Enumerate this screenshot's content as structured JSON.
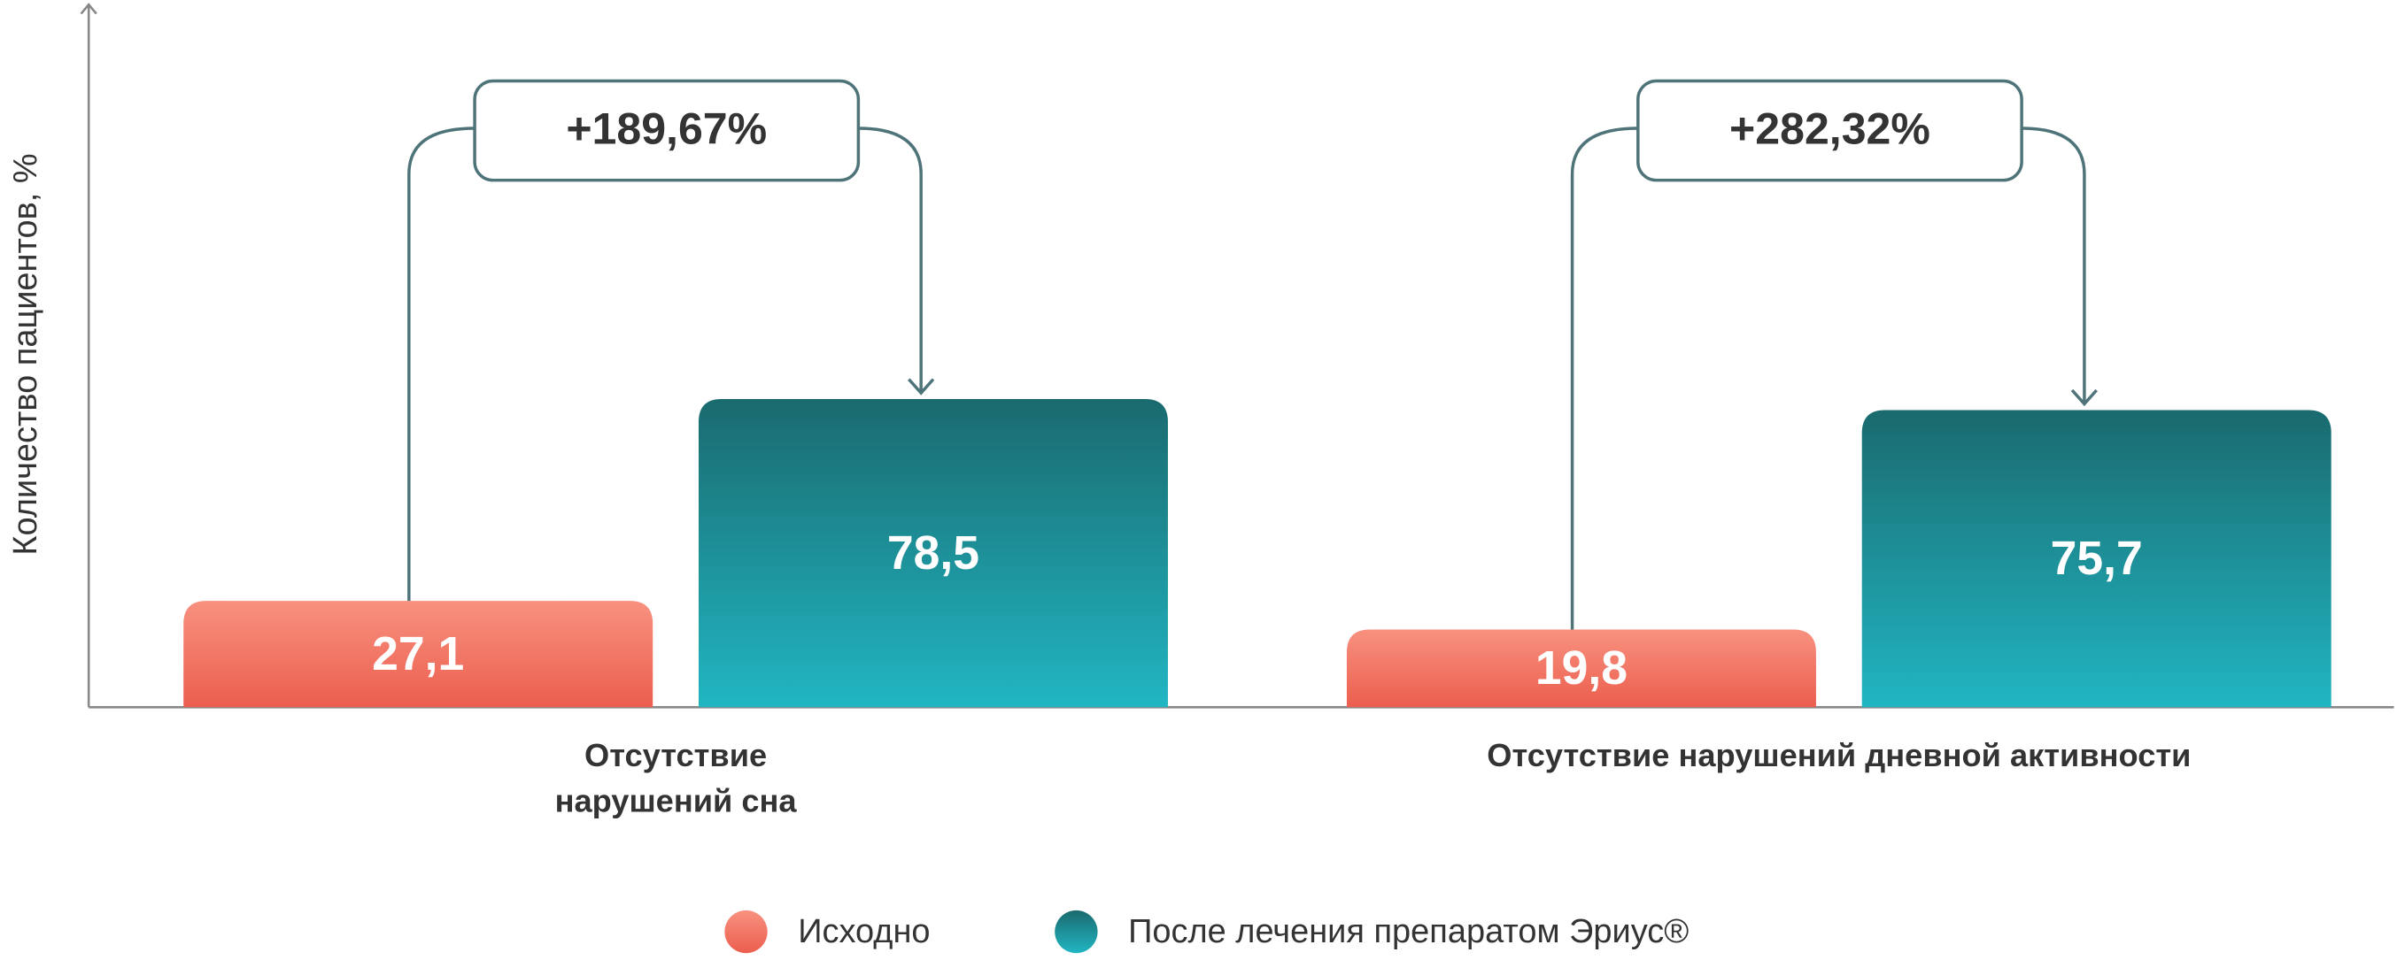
{
  "chart_data": {
    "type": "bar",
    "y_label": "Количество пациентов, %",
    "categories": [
      [
        "Отсутствие",
        "нарушений сна"
      ],
      [
        "Отсутствие нарушений дневной активности"
      ]
    ],
    "series": [
      {
        "name": "Исходно",
        "colors": [
          "#f8917f",
          "#ec5e4e"
        ],
        "values": [
          27.1,
          19.8
        ],
        "value_labels": [
          "27,1",
          "19,8"
        ]
      },
      {
        "name": "После лечения препаратом Эриус®",
        "colors": [
          "#1a6a6e",
          "#21b6c3"
        ],
        "values": [
          78.5,
          75.7
        ],
        "value_labels": [
          "78,5",
          "75,7"
        ]
      }
    ],
    "annotations": [
      "+189,67%",
      "+282,32%"
    ],
    "ylim": [
      0,
      179
    ]
  }
}
